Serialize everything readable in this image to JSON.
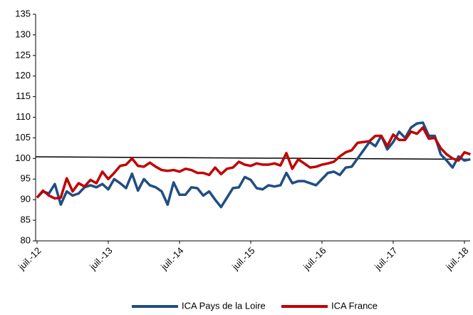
{
  "chart_data": {
    "type": "line",
    "categories": [
      "juil.-12",
      null,
      null,
      null,
      null,
      null,
      null,
      null,
      null,
      null,
      null,
      null,
      "juil.-13",
      null,
      null,
      null,
      null,
      null,
      null,
      null,
      null,
      null,
      null,
      null,
      "juil.-14",
      null,
      null,
      null,
      null,
      null,
      null,
      null,
      null,
      null,
      null,
      null,
      "juil.-15",
      null,
      null,
      null,
      null,
      null,
      null,
      null,
      null,
      null,
      null,
      null,
      "juil.-16",
      null,
      null,
      null,
      null,
      null,
      null,
      null,
      null,
      null,
      null,
      null,
      "juil.-17",
      null,
      null,
      null,
      null,
      null,
      null,
      null,
      null,
      null,
      null,
      null,
      "juil.-18",
      null
    ],
    "series": [
      {
        "name": "ICA Pays de la Loire",
        "color": "#1f4e82",
        "values": [
          90.5,
          92,
          91.5,
          93.8,
          88.8,
          92,
          91,
          91.5,
          93,
          93.5,
          93,
          93.8,
          92.5,
          95,
          94,
          92.8,
          96.3,
          92.2,
          95,
          93.5,
          93,
          92,
          88.8,
          94.2,
          91.2,
          91.2,
          93,
          92.8,
          91,
          92,
          90,
          88.2,
          90.5,
          92.8,
          93,
          95.5,
          94.8,
          92.8,
          92.5,
          93.5,
          93.2,
          93.5,
          96.5,
          94,
          94.5,
          94.5,
          94,
          93.5,
          95,
          96.5,
          96.8,
          96,
          97.8,
          98,
          100,
          102,
          104,
          103,
          105.5,
          102.2,
          104,
          106.5,
          105,
          107.5,
          108.5,
          108.7,
          105.5,
          105.5,
          101,
          99.5,
          97.8,
          100.5,
          99.5,
          99.8
        ]
      },
      {
        "name": "ICA France",
        "color": "#c00000",
        "values": [
          90.5,
          92.2,
          91,
          90.3,
          90.5,
          95.2,
          92,
          94,
          93.2,
          94.8,
          94,
          96.8,
          95,
          96.5,
          98.2,
          98.5,
          100,
          98.2,
          98,
          99,
          98,
          97.2,
          97,
          97.2,
          96.8,
          97.5,
          97.2,
          96.5,
          96.5,
          96,
          97.8,
          96.2,
          97.5,
          97.8,
          99.2,
          98.5,
          98.2,
          98.8,
          98.5,
          98.5,
          98.8,
          98.3,
          101.3,
          97.5,
          99.8,
          98.8,
          97.8,
          98,
          98.5,
          98.8,
          99.2,
          100.5,
          101.5,
          102,
          103.8,
          104,
          104.2,
          105.5,
          105.5,
          103,
          105.8,
          104.5,
          104.5,
          106.5,
          106,
          107.5,
          104.8,
          105,
          102.5,
          101,
          100,
          99.5,
          101.5,
          101
        ]
      }
    ],
    "trend_line": {
      "color": "#000000",
      "values": [
        100.4,
        99.8
      ]
    },
    "ylim": [
      80,
      135
    ],
    "yticks": [
      80,
      85,
      90,
      95,
      100,
      105,
      110,
      115,
      120,
      125,
      130,
      135
    ],
    "grid": false,
    "legend": "bottom"
  }
}
